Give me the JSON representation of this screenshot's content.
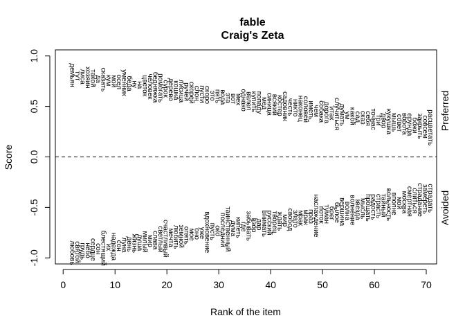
{
  "chart_data": {
    "type": "scatter",
    "title": "fable",
    "subtitle": "Craig's Zeta",
    "xlabel": "Rank of the item",
    "ylabel": "Score",
    "xlim": [
      -1.5,
      72
    ],
    "ylim": [
      -1.06,
      1.06
    ],
    "x_ticks": [
      0,
      10,
      20,
      30,
      40,
      50,
      60,
      70
    ],
    "y_ticks": [
      -1.0,
      -0.5,
      0.0,
      0.5,
      1.0
    ],
    "y_tick_labels": [
      "-1.0",
      "-0.5",
      "0.0",
      "0.5",
      "1.0"
    ],
    "right_labels": {
      "top": "Preferred",
      "bottom": "Avoided"
    },
    "reference_line": 0.0,
    "preferred": {
      "start": 0.81,
      "end": 0.29,
      "words": [
        "демьян",
        "тут",
        "лиса",
        "хозяин",
        "такой",
        "да",
        "сказать",
        "кум",
        "мой",
        "осел",
        "уменник",
        "беда",
        "ну",
        "на",
        "цветок",
        "человек",
        "бедняжка",
        "помогать",
        "сурок",
        "дерево",
        "кошка",
        "лисица",
        "ручей",
        "скорей",
        "слон",
        "пусти",
        "скоро",
        "это",
        "пять",
        "вода",
        "эта",
        "вот",
        "мех",
        "однако",
        "велел",
        "купить",
        "попаду",
        "мед",
        "синица",
        "всякий",
        "костер",
        "садовник",
        "честь",
        "никто",
        "наконец",
        "соловей",
        "иметь",
        "чем",
        "собака",
        "дорога",
        "итак",
        "случиться",
        "думать",
        "ум",
        "какой",
        "сад",
        "сказ",
        "себя",
        "точнас",
        "три",
        "двор",
        "кукушка",
        "мышь",
        "совет",
        "ворота",
        "ерунда",
        "божи",
        "закрыть",
        "совсем",
        "расцветать"
      ]
    },
    "avoided": {
      "start": -0.95,
      "end": -0.41,
      "words": [
        "любовь",
        "святой",
        "грудь",
        "небо",
        "сердце",
        "сон",
        "блестящий",
        "их",
        "надежда",
        "сон",
        "луна",
        "день",
        "жизнь",
        "душа",
        "милый",
        "мир",
        "слава",
        "светлый",
        "счастливый",
        "мечта",
        "любить",
        "земной",
        "опять",
        "мое",
        "оно",
        "уже",
        "вдохновение",
        "пусть",
        "око",
        "последний",
        "таинственный",
        "дума",
        "кипеть",
        "где",
        "забывать",
        "взор",
        "дар",
        "внимать",
        "русский",
        "творец",
        "ждать",
        "мир",
        "свобод",
        "злато",
        "мрак",
        "мрак",
        "праз",
        "наслаждение",
        "поток",
        "туман",
        "брег",
        "былое",
        "вершина",
        "волна",
        "волнение",
        "звезда",
        "мысль",
        "прощать",
        "радость",
        "страсть",
        "тайный",
        "вольность",
        "вполне",
        "мой",
        "москва",
        "смертная",
        "слиться",
        "страдание",
        "замереть",
        "страдать"
      ]
    }
  }
}
